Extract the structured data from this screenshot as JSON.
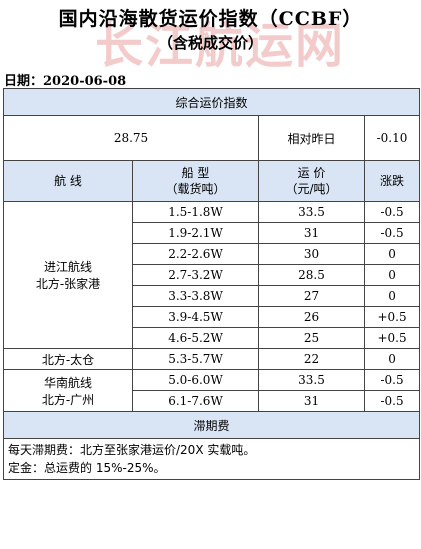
{
  "header": {
    "title": "国内沿海散货运价指数（CCBF）",
    "subtitle": "（含税成交价）",
    "watermark": "长江航运网",
    "date_label": "日期：",
    "date_value": "2020-06-08"
  },
  "composite": {
    "label": "综合运价指数",
    "value": "28.75",
    "compare_label": "相对昨日",
    "change": "-0.10"
  },
  "columns": {
    "route": "航  线",
    "ship_type": "船  型",
    "ship_type_sub": "（载货吨）",
    "freight": "运  价",
    "freight_sub": "（元/吨）",
    "change": "涨跌"
  },
  "groups": [
    {
      "route_line1": "进江航线",
      "route_line2": "北方-张家港",
      "rows": [
        {
          "ship": "1.5-1.8W",
          "price": "33.5",
          "change": "-0.5"
        },
        {
          "ship": "1.9-2.1W",
          "price": "31",
          "change": "-0.5"
        },
        {
          "ship": "2.2-2.6W",
          "price": "30",
          "change": "0"
        },
        {
          "ship": "2.7-3.2W",
          "price": "28.5",
          "change": "0"
        },
        {
          "ship": "3.3-3.8W",
          "price": "27",
          "change": "0"
        },
        {
          "ship": "3.9-4.5W",
          "price": "26",
          "change": "+0.5"
        },
        {
          "ship": "4.6-5.2W",
          "price": "25",
          "change": "+0.5"
        }
      ]
    },
    {
      "route_line1": "北方-太仓",
      "route_line2": "",
      "rows": [
        {
          "ship": "5.3-5.7W",
          "price": "22",
          "change": "0"
        }
      ]
    },
    {
      "route_line1": "华南航线",
      "route_line2": "北方-广州",
      "rows": [
        {
          "ship": "5.0-6.0W",
          "price": "33.5",
          "change": "-0.5"
        },
        {
          "ship": "6.1-7.6W",
          "price": "31",
          "change": "-0.5"
        }
      ]
    }
  ],
  "demurrage": {
    "label": "滞期费",
    "line1": "每天滞期费：北方至张家港运价/20X 实载吨。",
    "line2": "定金：总运费的 15%-25%。"
  },
  "colors": {
    "header_band": "#d9e5f4",
    "watermark": "#cc1414"
  }
}
